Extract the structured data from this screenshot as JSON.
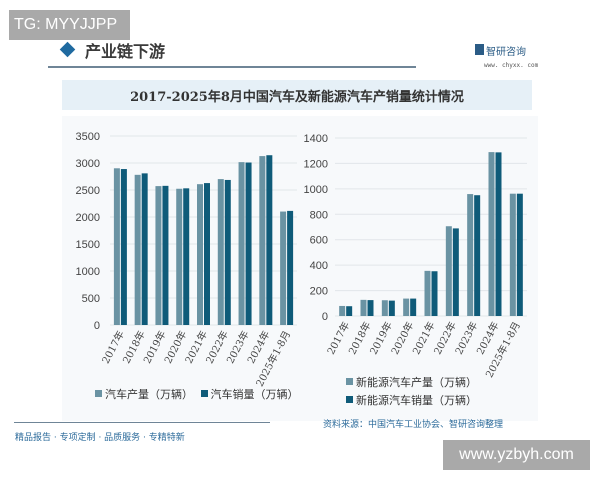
{
  "watermark_top": "TG: MYYJJPP",
  "watermark_bottom": "www.yzbyh.com",
  "header": {
    "section": "产业链下游",
    "brand": "智研咨询",
    "brand_url": "www. chyxx. com"
  },
  "footer": {
    "slogan": "精品报告 · 专项定制 · 品质服务 · 专精特新",
    "source": "资料来源：中国汽车工业协会、智研咨询整理"
  },
  "colors": {
    "production": "#6a93a3",
    "sales": "#0f5b79"
  },
  "chart_data": [
    {
      "type": "bar",
      "title": "2017-2025年8月中国汽车及新能源汽车产销量统计情况",
      "categories": [
        "2017年",
        "2018年",
        "2019年",
        "2020年",
        "2021年",
        "2022年",
        "2023年",
        "2024年",
        "2025年1-8月"
      ],
      "ylim": [
        0,
        3500
      ],
      "yticks": [
        "0",
        "500",
        "1000",
        "1500",
        "2000",
        "2500",
        "3000",
        "3500"
      ],
      "grid": true,
      "legend": "bottom",
      "series": [
        {
          "name": "汽车产量（万辆）",
          "values": [
            2902,
            2781,
            2572,
            2523,
            2608,
            2702,
            3016,
            3128,
            2101
          ]
        },
        {
          "name": "汽车销量（万辆）",
          "values": [
            2888,
            2808,
            2577,
            2531,
            2628,
            2686,
            3009,
            3144,
            2113
          ]
        }
      ]
    },
    {
      "type": "bar",
      "categories": [
        "2017年",
        "2018年",
        "2019年",
        "2020年",
        "2021年",
        "2022年",
        "2023年",
        "2024年",
        "2025年1-8月"
      ],
      "ylim": [
        0,
        1400
      ],
      "yticks": [
        "0",
        "200",
        "400",
        "600",
        "800",
        "1000",
        "1200",
        "1400"
      ],
      "grid": true,
      "legend": "bottom",
      "series": [
        {
          "name": "新能源汽车产量（万辆）",
          "values": [
            79,
            127,
            124,
            137,
            355,
            706,
            959,
            1289,
            962
          ]
        },
        {
          "name": "新能源汽车销量（万辆）",
          "values": [
            77,
            125,
            121,
            137,
            352,
            689,
            950,
            1287,
            962
          ]
        }
      ]
    }
  ]
}
